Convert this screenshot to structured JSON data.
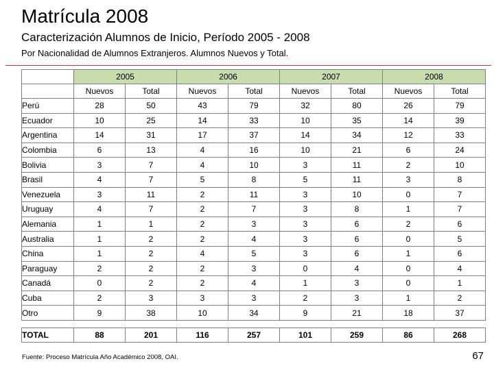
{
  "header": {
    "title": "Matrícula 2008",
    "subtitle": "Caracterización Alumnos de Inicio, Período 2005 - 2008",
    "description": "Por Nacionalidad de Alumnos Extranjeros. Alumnos Nuevos y Total."
  },
  "colors": {
    "rule": "#c0304a",
    "year_header_bg": "#c8dcae",
    "border": "#808080"
  },
  "table": {
    "years": [
      "2005",
      "2006",
      "2007",
      "2008"
    ],
    "subheaders": [
      "Nuevos",
      "Total",
      "Nuevos",
      "Total",
      "Nuevos",
      "Total",
      "Nuevos",
      "Total"
    ],
    "rows": [
      {
        "name": "Perú",
        "values": [
          "28",
          "50",
          "43",
          "79",
          "32",
          "80",
          "26",
          "79"
        ]
      },
      {
        "name": "Ecuador",
        "values": [
          "10",
          "25",
          "14",
          "33",
          "10",
          "35",
          "14",
          "39"
        ]
      },
      {
        "name": "Argentina",
        "values": [
          "14",
          "31",
          "17",
          "37",
          "14",
          "34",
          "12",
          "33"
        ]
      },
      {
        "name": "Colombia",
        "values": [
          "6",
          "13",
          "4",
          "16",
          "10",
          "21",
          "6",
          "24"
        ]
      },
      {
        "name": "Bolivia",
        "values": [
          "3",
          "7",
          "4",
          "10",
          "3",
          "11",
          "2",
          "10"
        ]
      },
      {
        "name": "Brasil",
        "values": [
          "4",
          "7",
          "5",
          "8",
          "5",
          "11",
          "3",
          "8"
        ]
      },
      {
        "name": "Venezuela",
        "values": [
          "3",
          "11",
          "2",
          "11",
          "3",
          "10",
          "0",
          "7"
        ]
      },
      {
        "name": "Uruguay",
        "values": [
          "4",
          "7",
          "2",
          "7",
          "3",
          "8",
          "1",
          "7"
        ]
      },
      {
        "name": "Alemania",
        "values": [
          "1",
          "1",
          "2",
          "3",
          "3",
          "6",
          "2",
          "6"
        ]
      },
      {
        "name": "Australia",
        "values": [
          "1",
          "2",
          "2",
          "4",
          "3",
          "6",
          "0",
          "5"
        ]
      },
      {
        "name": "China",
        "values": [
          "1",
          "2",
          "4",
          "5",
          "3",
          "6",
          "1",
          "6"
        ]
      },
      {
        "name": "Paraguay",
        "values": [
          "2",
          "2",
          "2",
          "3",
          "0",
          "4",
          "0",
          "4"
        ]
      },
      {
        "name": "Canadá",
        "values": [
          "0",
          "2",
          "2",
          "4",
          "1",
          "3",
          "0",
          "1"
        ]
      },
      {
        "name": "Cuba",
        "values": [
          "2",
          "3",
          "3",
          "3",
          "2",
          "3",
          "1",
          "2"
        ]
      },
      {
        "name": "Otro",
        "values": [
          "9",
          "38",
          "10",
          "34",
          "9",
          "21",
          "18",
          "37"
        ]
      }
    ],
    "total": {
      "name": "TOTAL",
      "values": [
        "88",
        "201",
        "116",
        "257",
        "101",
        "259",
        "86",
        "268"
      ]
    }
  },
  "footer": {
    "source": "Fuente: Proceso Matrícula Año Académico 2008, OAI.",
    "page_number": "67"
  }
}
